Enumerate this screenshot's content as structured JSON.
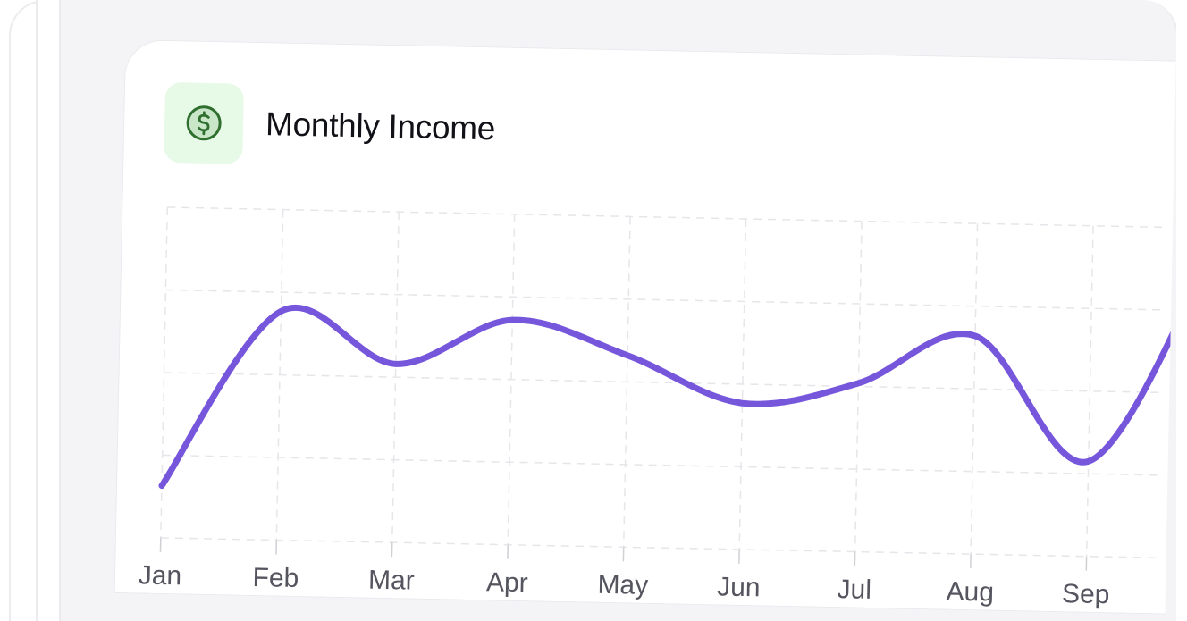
{
  "card": {
    "title": "Monthly Income",
    "icon": "dollar-circle-icon"
  },
  "colors": {
    "line": "#7657dc",
    "icon_bg": "#e7f9e7",
    "icon_fg": "#2f6e2f",
    "grid": "#e6e6ea"
  },
  "chart_data": {
    "type": "line",
    "title": "Monthly Income",
    "categories": [
      "Jan",
      "Feb",
      "Mar",
      "Apr",
      "May",
      "Jun",
      "Jul",
      "Aug",
      "Sep"
    ],
    "values": [
      0.63,
      2.77,
      2.16,
      2.72,
      2.32,
      1.77,
      2.04,
      2.64,
      1.15
    ],
    "next_value_clipped": 3.6,
    "xlabel": "",
    "ylabel": "",
    "ylim": [
      0,
      4
    ],
    "grid": true,
    "smooth": true,
    "legend": "none"
  }
}
